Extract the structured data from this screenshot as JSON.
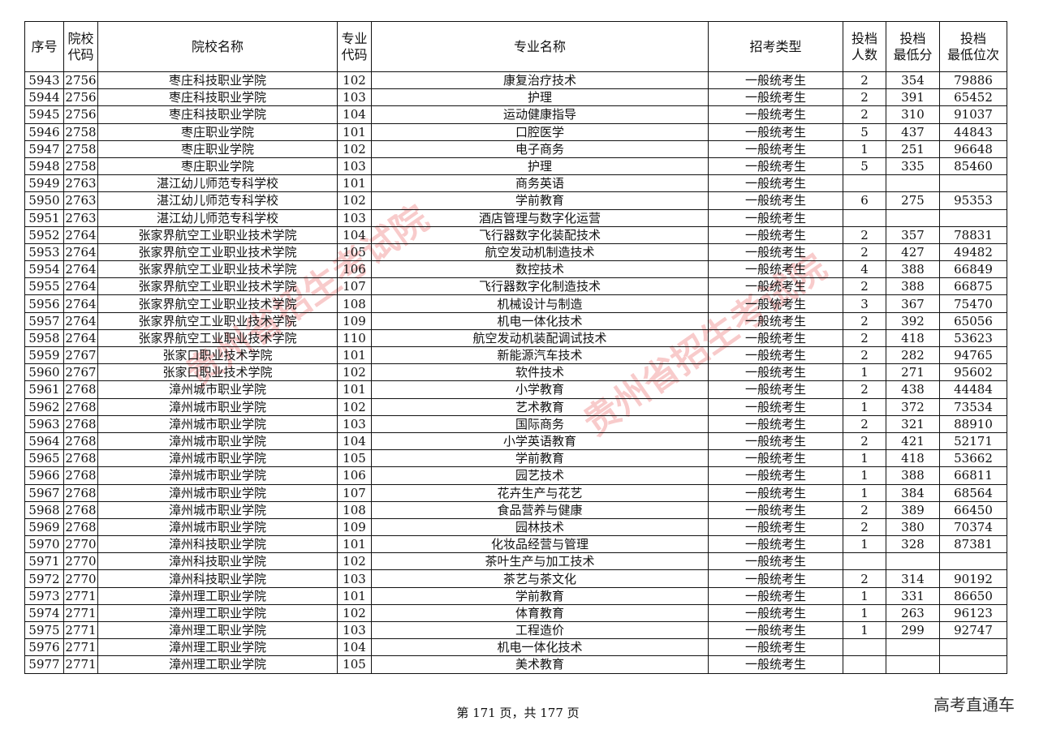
{
  "headers": [
    "序号",
    "院校\n代码",
    "院校名称",
    "专业\n代码",
    "专业名称",
    "招考类型",
    "投档\n人数",
    "投档\n最低分",
    "投档\n最低位次"
  ],
  "rows": [
    [
      "5943",
      "2756",
      "枣庄科技职业学院",
      "102",
      "康复治疗技术",
      "一般统考生",
      "2",
      "354",
      "79886"
    ],
    [
      "5944",
      "2756",
      "枣庄科技职业学院",
      "103",
      "护理",
      "一般统考生",
      "2",
      "391",
      "65452"
    ],
    [
      "5945",
      "2756",
      "枣庄科技职业学院",
      "104",
      "运动健康指导",
      "一般统考生",
      "2",
      "310",
      "91037"
    ],
    [
      "5946",
      "2758",
      "枣庄职业学院",
      "101",
      "口腔医学",
      "一般统考生",
      "5",
      "437",
      "44843"
    ],
    [
      "5947",
      "2758",
      "枣庄职业学院",
      "102",
      "电子商务",
      "一般统考生",
      "1",
      "251",
      "96648"
    ],
    [
      "5948",
      "2758",
      "枣庄职业学院",
      "103",
      "护理",
      "一般统考生",
      "5",
      "335",
      "85460"
    ],
    [
      "5949",
      "2763",
      "湛江幼儿师范专科学校",
      "101",
      "商务英语",
      "一般统考生",
      "",
      "",
      ""
    ],
    [
      "5950",
      "2763",
      "湛江幼儿师范专科学校",
      "102",
      "学前教育",
      "一般统考生",
      "6",
      "275",
      "95353"
    ],
    [
      "5951",
      "2763",
      "湛江幼儿师范专科学校",
      "103",
      "酒店管理与数字化运营",
      "一般统考生",
      "",
      "",
      ""
    ],
    [
      "5952",
      "2764",
      "张家界航空工业职业技术学院",
      "104",
      "飞行器数字化装配技术",
      "一般统考生",
      "2",
      "357",
      "78831"
    ],
    [
      "5953",
      "2764",
      "张家界航空工业职业技术学院",
      "105",
      "航空发动机制造技术",
      "一般统考生",
      "2",
      "427",
      "49482"
    ],
    [
      "5954",
      "2764",
      "张家界航空工业职业技术学院",
      "106",
      "数控技术",
      "一般统考生",
      "4",
      "388",
      "66849"
    ],
    [
      "5955",
      "2764",
      "张家界航空工业职业技术学院",
      "107",
      "飞行器数字化制造技术",
      "一般统考生",
      "2",
      "388",
      "66875"
    ],
    [
      "5956",
      "2764",
      "张家界航空工业职业技术学院",
      "108",
      "机械设计与制造",
      "一般统考生",
      "3",
      "367",
      "75470"
    ],
    [
      "5957",
      "2764",
      "张家界航空工业职业技术学院",
      "109",
      "机电一体化技术",
      "一般统考生",
      "2",
      "392",
      "65056"
    ],
    [
      "5958",
      "2764",
      "张家界航空工业职业技术学院",
      "110",
      "航空发动机装配调试技术",
      "一般统考生",
      "2",
      "418",
      "53623"
    ],
    [
      "5959",
      "2767",
      "张家口职业技术学院",
      "101",
      "新能源汽车技术",
      "一般统考生",
      "2",
      "282",
      "94765"
    ],
    [
      "5960",
      "2767",
      "张家口职业技术学院",
      "102",
      "软件技术",
      "一般统考生",
      "1",
      "271",
      "95602"
    ],
    [
      "5961",
      "2768",
      "漳州城市职业学院",
      "101",
      "小学教育",
      "一般统考生",
      "2",
      "438",
      "44484"
    ],
    [
      "5962",
      "2768",
      "漳州城市职业学院",
      "102",
      "艺术教育",
      "一般统考生",
      "1",
      "372",
      "73534"
    ],
    [
      "5963",
      "2768",
      "漳州城市职业学院",
      "103",
      "国际商务",
      "一般统考生",
      "2",
      "321",
      "88910"
    ],
    [
      "5964",
      "2768",
      "漳州城市职业学院",
      "104",
      "小学英语教育",
      "一般统考生",
      "2",
      "421",
      "52171"
    ],
    [
      "5965",
      "2768",
      "漳州城市职业学院",
      "105",
      "学前教育",
      "一般统考生",
      "1",
      "418",
      "53662"
    ],
    [
      "5966",
      "2768",
      "漳州城市职业学院",
      "106",
      "园艺技术",
      "一般统考生",
      "1",
      "388",
      "66811"
    ],
    [
      "5967",
      "2768",
      "漳州城市职业学院",
      "107",
      "花卉生产与花艺",
      "一般统考生",
      "1",
      "384",
      "68564"
    ],
    [
      "5968",
      "2768",
      "漳州城市职业学院",
      "108",
      "食品营养与健康",
      "一般统考生",
      "2",
      "389",
      "66450"
    ],
    [
      "5969",
      "2768",
      "漳州城市职业学院",
      "109",
      "园林技术",
      "一般统考生",
      "2",
      "380",
      "70374"
    ],
    [
      "5970",
      "2770",
      "漳州科技职业学院",
      "101",
      "化妆品经营与管理",
      "一般统考生",
      "1",
      "328",
      "87381"
    ],
    [
      "5971",
      "2770",
      "漳州科技职业学院",
      "102",
      "茶叶生产与加工技术",
      "一般统考生",
      "",
      "",
      ""
    ],
    [
      "5972",
      "2770",
      "漳州科技职业学院",
      "103",
      "茶艺与茶文化",
      "一般统考生",
      "2",
      "314",
      "90192"
    ],
    [
      "5973",
      "2771",
      "漳州理工职业学院",
      "101",
      "学前教育",
      "一般统考生",
      "1",
      "331",
      "86650"
    ],
    [
      "5974",
      "2771",
      "漳州理工职业学院",
      "102",
      "体育教育",
      "一般统考生",
      "1",
      "263",
      "96123"
    ],
    [
      "5975",
      "2771",
      "漳州理工职业学院",
      "103",
      "工程造价",
      "一般统考生",
      "1",
      "299",
      "92747"
    ],
    [
      "5976",
      "2771",
      "漳州理工职业学院",
      "104",
      "机电一体化技术",
      "一般统考生",
      "",
      "",
      ""
    ],
    [
      "5977",
      "2771",
      "漳州理工职业学院",
      "105",
      "美术教育",
      "一般统考生",
      "",
      "",
      ""
    ]
  ],
  "footer": "第 171 页，共 177 页",
  "brand": "高考直通车",
  "watermark": "贵州省招生考试院",
  "watermark_color": "#e64646"
}
